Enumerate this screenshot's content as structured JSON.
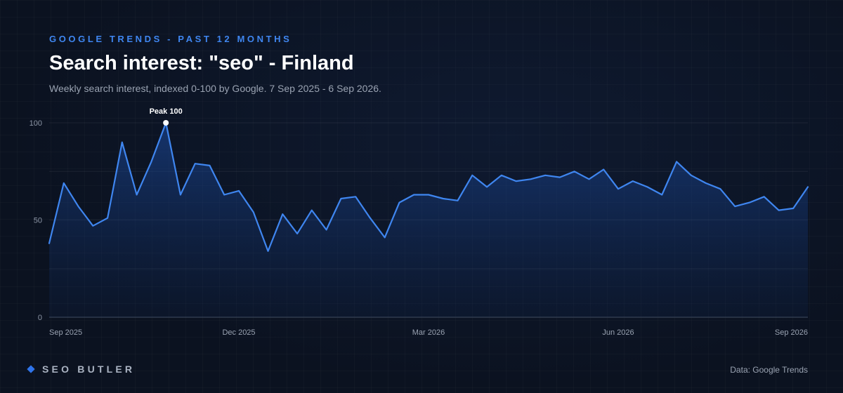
{
  "header": {
    "eyebrow": "GOOGLE TRENDS - PAST 12 MONTHS",
    "title": "Search interest: \"seo\" - Finland",
    "subtitle": "Weekly search interest, indexed 0-100 by Google. 7 Sep 2025 - 6 Sep 2026."
  },
  "footer": {
    "brand": "SEO BUTLER",
    "source": "Data: Google Trends"
  },
  "colors": {
    "line": "#3f86f0",
    "accent": "#2f74ea",
    "background": "#0b1220"
  },
  "chart_data": {
    "type": "line",
    "title": "Search interest: \"seo\" - Finland",
    "subtitle": "Weekly search interest, indexed 0-100 by Google. 7 Sep 2025 - 6 Sep 2026.",
    "xlabel": "",
    "ylabel": "",
    "ylim": [
      0,
      100
    ],
    "yticks": [
      0,
      50,
      100
    ],
    "grid": true,
    "legend": "none",
    "x_ticks": [
      {
        "label": "Sep 2025",
        "week": 0
      },
      {
        "label": "Dec 2025",
        "week": 13
      },
      {
        "label": "Mar 2026",
        "week": 26
      },
      {
        "label": "Jun 2026",
        "week": 39
      },
      {
        "label": "Sep 2026",
        "week": 52
      }
    ],
    "annotation": {
      "text": "Peak 100",
      "week": 8,
      "value": 100
    },
    "series": [
      {
        "values": [
          38,
          69,
          57,
          47,
          51,
          90,
          63,
          80,
          100,
          63,
          79,
          78,
          63,
          65,
          54,
          34,
          53,
          43,
          55,
          45,
          61,
          62,
          51,
          41,
          59,
          63,
          63,
          61,
          60,
          73,
          67,
          73,
          70,
          71,
          73,
          72,
          75,
          71,
          76,
          66,
          70,
          67,
          63,
          80,
          73,
          69,
          66,
          57,
          59,
          62,
          55,
          56,
          67
        ]
      }
    ]
  }
}
